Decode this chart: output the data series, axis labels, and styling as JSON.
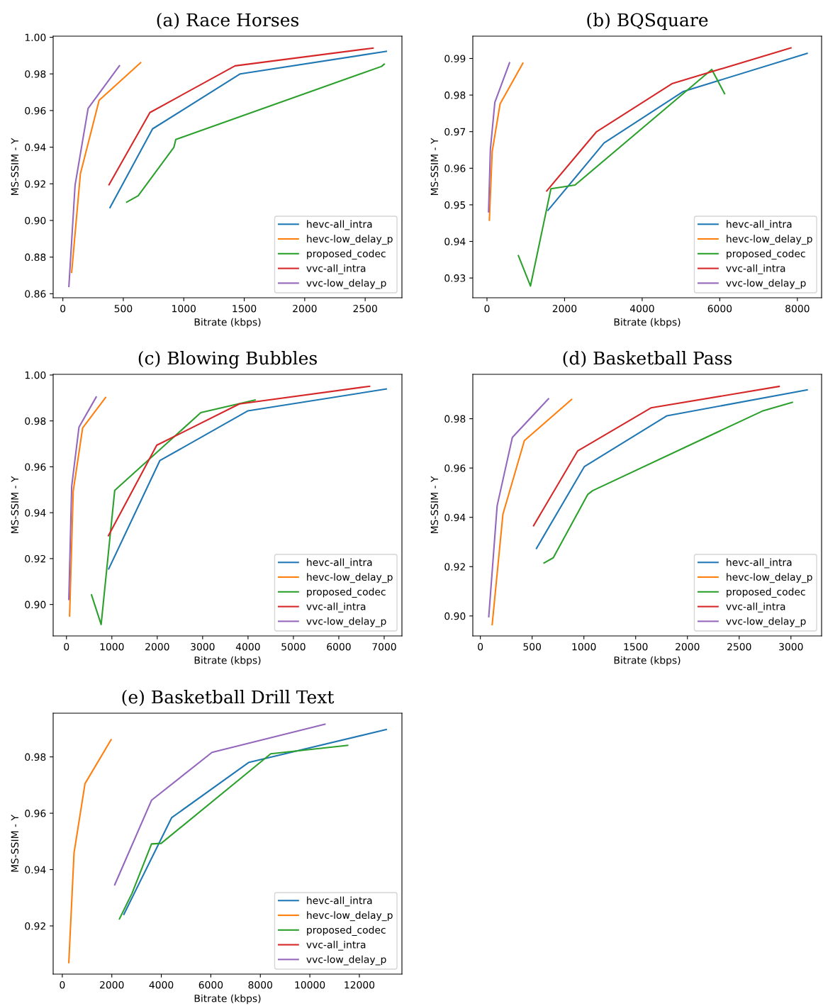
{
  "chart_data": [
    {
      "type": "line",
      "title": "(a) Race Horses",
      "xlabel": "Bitrate (kbps)",
      "ylabel": "MS-SSIM - Y",
      "legend": "bottom right",
      "xlim": [
        -80,
        2804
      ],
      "ylim": [
        0.8578,
        1.0006
      ],
      "xticks": [
        0,
        500,
        1000,
        1500,
        2000,
        2500
      ],
      "yticks": [
        {
          "value": 0.86,
          "label": "0.86"
        },
        {
          "value": 0.88,
          "label": "0.88"
        },
        {
          "value": 0.9,
          "label": "0.90"
        },
        {
          "value": 0.92,
          "label": "0.92"
        },
        {
          "value": 0.94,
          "label": "0.94"
        },
        {
          "value": 0.96,
          "label": "0.96"
        },
        {
          "value": 0.98,
          "label": "0.98"
        },
        {
          "value": 1.0,
          "label": "1.00"
        }
      ],
      "series": [
        {
          "name": "hevc-all_intra",
          "color": "#1f77b4",
          "x": [
            390,
            742,
            1467,
            2675
          ],
          "values": [
            0.907,
            0.95,
            0.98,
            0.9923
          ]
        },
        {
          "name": "hevc-low_delay_p",
          "color": "#ff7f0e",
          "x": [
            73,
            145,
            300,
            643
          ],
          "values": [
            0.8717,
            0.9254,
            0.9656,
            0.9861
          ]
        },
        {
          "name": "proposed_codec",
          "color": "#2ca02c",
          "x": [
            528,
            623,
            919,
            934,
            2636,
            2657
          ],
          "values": [
            0.91,
            0.9135,
            0.94,
            0.9442,
            0.9841,
            0.9853
          ]
        },
        {
          "name": "vvc-all_intra",
          "color": "#d62728",
          "x": [
            382,
            720,
            1424,
            2565
          ],
          "values": [
            0.9195,
            0.9589,
            0.9844,
            0.9941
          ]
        },
        {
          "name": "vvc-low_delay_p",
          "color": "#9467bd",
          "x": [
            50,
            101,
            209,
            468
          ],
          "values": [
            0.864,
            0.9192,
            0.9612,
            0.9845
          ]
        }
      ]
    },
    {
      "type": "line",
      "title": "(b) BQSquare",
      "xlabel": "Bitrate (kbps)",
      "ylabel": "MS-SSIM - Y",
      "legend": "bottom right",
      "xlim": [
        -365,
        8624
      ],
      "ylim": [
        0.9246,
        0.9961
      ],
      "xticks": [
        0,
        2000,
        4000,
        6000,
        8000
      ],
      "yticks": [
        {
          "value": 0.93,
          "label": "0.93"
        },
        {
          "value": 0.94,
          "label": "0.94"
        },
        {
          "value": 0.95,
          "label": "0.95"
        },
        {
          "value": 0.96,
          "label": "0.96"
        },
        {
          "value": 0.97,
          "label": "0.97"
        },
        {
          "value": 0.98,
          "label": "0.98"
        },
        {
          "value": 0.99,
          "label": "0.99"
        }
      ],
      "series": [
        {
          "name": "hevc-all_intra",
          "color": "#1f77b4",
          "x": [
            1573,
            3018,
            5064,
            8251
          ],
          "values": [
            0.9485,
            0.9669,
            0.981,
            0.9914
          ]
        },
        {
          "name": "hevc-low_delay_p",
          "color": "#ff7f0e",
          "x": [
            61,
            135,
            338,
            925
          ],
          "values": [
            0.9458,
            0.9646,
            0.9776,
            0.9887
          ]
        },
        {
          "name": "proposed_codec",
          "color": "#2ca02c",
          "x": [
            810,
            1121,
            1648,
            2269,
            5793,
            6124
          ],
          "values": [
            0.9361,
            0.9278,
            0.9544,
            0.9554,
            0.987,
            0.9804
          ]
        },
        {
          "name": "vvc-all_intra",
          "color": "#d62728",
          "x": [
            1540,
            2816,
            4767,
            7833
          ],
          "values": [
            0.9538,
            0.9699,
            0.9831,
            0.9929
          ]
        },
        {
          "name": "vvc-low_delay_p",
          "color": "#9467bd",
          "x": [
            41,
            88,
            203,
            581
          ],
          "values": [
            0.9481,
            0.9652,
            0.978,
            0.9888
          ]
        }
      ]
    },
    {
      "type": "line",
      "title": "(c) Blowing Bubbles",
      "xlabel": "Bitrate (kbps)",
      "ylabel": "MS-SSIM - Y",
      "legend": "bottom right",
      "xlim": [
        -293,
        7391
      ],
      "ylim": [
        0.8863,
        1.0003
      ],
      "xticks": [
        0,
        1000,
        2000,
        3000,
        4000,
        5000,
        6000,
        7000
      ],
      "yticks": [
        {
          "value": 0.9,
          "label": "0.90"
        },
        {
          "value": 0.92,
          "label": "0.92"
        },
        {
          "value": 0.94,
          "label": "0.94"
        },
        {
          "value": 0.96,
          "label": "0.96"
        },
        {
          "value": 0.98,
          "label": "0.98"
        },
        {
          "value": 1.0,
          "label": "1.00"
        }
      ],
      "series": [
        {
          "name": "hevc-all_intra",
          "color": "#1f77b4",
          "x": [
            931,
            2057,
            4000,
            7046
          ],
          "values": [
            0.9155,
            0.9627,
            0.9844,
            0.9939
          ]
        },
        {
          "name": "hevc-low_delay_p",
          "color": "#ff7f0e",
          "x": [
            69,
            149,
            356,
            862
          ],
          "values": [
            0.895,
            0.9494,
            0.9769,
            0.9902
          ]
        },
        {
          "name": "proposed_codec",
          "color": "#2ca02c",
          "x": [
            552,
            764,
            1063,
            2960,
            4155
          ],
          "values": [
            0.9042,
            0.8913,
            0.9497,
            0.9836,
            0.9891
          ]
        },
        {
          "name": "vvc-all_intra",
          "color": "#d62728",
          "x": [
            925,
            1989,
            3810,
            6678
          ],
          "values": [
            0.93,
            0.9694,
            0.9874,
            0.9951
          ]
        },
        {
          "name": "vvc-low_delay_p",
          "color": "#9467bd",
          "x": [
            52,
            115,
            276,
            655
          ],
          "values": [
            0.9022,
            0.9515,
            0.9773,
            0.9904
          ]
        }
      ]
    },
    {
      "type": "line",
      "title": "(d) Basketball Pass",
      "xlabel": "Bitrate (kbps)",
      "ylabel": "MS-SSIM - Y",
      "legend": "bottom right",
      "xlim": [
        -73,
        3296
      ],
      "ylim": [
        0.8919,
        0.998
      ],
      "xticks": [
        0,
        500,
        1000,
        1500,
        2000,
        2500,
        3000
      ],
      "yticks": [
        {
          "value": 0.9,
          "label": "0.90"
        },
        {
          "value": 0.92,
          "label": "0.92"
        },
        {
          "value": 0.94,
          "label": "0.94"
        },
        {
          "value": 0.96,
          "label": "0.96"
        },
        {
          "value": 0.98,
          "label": "0.98"
        }
      ],
      "series": [
        {
          "name": "hevc-all_intra",
          "color": "#1f77b4",
          "x": [
            542,
            1005,
            1803,
            3157
          ],
          "values": [
            0.9274,
            0.9606,
            0.9812,
            0.9917
          ]
        },
        {
          "name": "hevc-low_delay_p",
          "color": "#ff7f0e",
          "x": [
            114,
            218,
            425,
            881
          ],
          "values": [
            0.8965,
            0.9413,
            0.9711,
            0.9878
          ]
        },
        {
          "name": "proposed_codec",
          "color": "#2ca02c",
          "x": [
            615,
            704,
            1038,
            1084,
            2724,
            3013
          ],
          "values": [
            0.9215,
            0.9236,
            0.9493,
            0.9508,
            0.9831,
            0.9866
          ]
        },
        {
          "name": "vvc-all_intra",
          "color": "#d62728",
          "x": [
            514,
            939,
            1648,
            2886
          ],
          "values": [
            0.9366,
            0.9669,
            0.9844,
            0.9931
          ]
        },
        {
          "name": "vvc-low_delay_p",
          "color": "#9467bd",
          "x": [
            81,
            162,
            309,
            658
          ],
          "values": [
            0.8997,
            0.9447,
            0.9724,
            0.9881
          ]
        }
      ]
    },
    {
      "type": "line",
      "title": "(e) Basketball Drill Text",
      "xlabel": "Bitrate (kbps)",
      "ylabel": "MS-SSIM - Y",
      "legend": "bottom right",
      "xlim": [
        -369,
        13720
      ],
      "ylim": [
        0.9029,
        0.9955
      ],
      "xticks": [
        0,
        2000,
        4000,
        6000,
        8000,
        10000,
        12000
      ],
      "yticks": [
        {
          "value": 0.92,
          "label": "0.92"
        },
        {
          "value": 0.94,
          "label": "0.94"
        },
        {
          "value": 0.96,
          "label": "0.96"
        },
        {
          "value": 0.98,
          "label": "0.98"
        }
      ],
      "series": [
        {
          "name": "hevc-all_intra",
          "color": "#1f77b4",
          "x": [
            2487,
            4415,
            7524,
            13087
          ],
          "values": [
            0.9241,
            0.9584,
            0.978,
            0.9897
          ]
        },
        {
          "name": "hevc-low_delay_p",
          "color": "#ff7f0e",
          "x": [
            263,
            474,
            917,
            1970
          ],
          "values": [
            0.907,
            0.9459,
            0.9705,
            0.9861
          ]
        },
        {
          "name": "proposed_codec",
          "color": "#2ca02c",
          "x": [
            2308,
            2813,
            3604,
            3994,
            8419,
            11528
          ],
          "values": [
            0.9225,
            0.9315,
            0.9491,
            0.9493,
            0.9811,
            0.9841
          ]
        },
        {
          "name": "vvc-all_intra",
          "color": "#d62728"
        },
        {
          "name": "vvc-low_delay_p",
          "color": "#9467bd",
          "x": [
            2118,
            3604,
            6048,
            10611
          ],
          "values": [
            0.9346,
            0.9646,
            0.9816,
            0.9916
          ]
        }
      ]
    }
  ]
}
